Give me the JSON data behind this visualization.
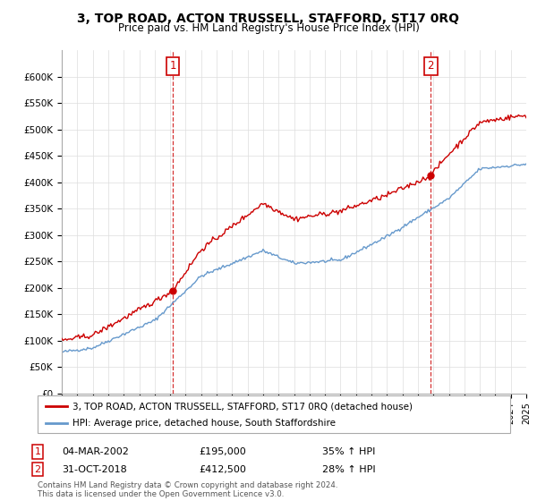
{
  "title": "3, TOP ROAD, ACTON TRUSSELL, STAFFORD, ST17 0RQ",
  "subtitle": "Price paid vs. HM Land Registry's House Price Index (HPI)",
  "ylabel_ticks": [
    "£0",
    "£50K",
    "£100K",
    "£150K",
    "£200K",
    "£250K",
    "£300K",
    "£350K",
    "£400K",
    "£450K",
    "£500K",
    "£550K",
    "£600K"
  ],
  "ytick_values": [
    0,
    50000,
    100000,
    150000,
    200000,
    250000,
    300000,
    350000,
    400000,
    450000,
    500000,
    550000,
    600000
  ],
  "ylim": [
    0,
    650000
  ],
  "x_start_year": 1995,
  "x_end_year": 2025,
  "purchase1_year": 2002.17,
  "purchase1_price": 195000,
  "purchase1_label": "1",
  "purchase2_year": 2018.83,
  "purchase2_price": 412500,
  "purchase2_label": "2",
  "red_color": "#cc0000",
  "blue_color": "#6699cc",
  "vline_color": "#cc0000",
  "box_color": "#cc0000",
  "grid_color": "#dddddd",
  "bg_color": "#ffffff",
  "legend_line1": "3, TOP ROAD, ACTON TRUSSELL, STAFFORD, ST17 0RQ (detached house)",
  "legend_line2": "HPI: Average price, detached house, South Staffordshire",
  "annotation1_date": "04-MAR-2002",
  "annotation1_price": "£195,000",
  "annotation1_hpi": "35% ↑ HPI",
  "annotation2_date": "31-OCT-2018",
  "annotation2_price": "£412,500",
  "annotation2_hpi": "28% ↑ HPI",
  "footer": "Contains HM Land Registry data © Crown copyright and database right 2024.\nThis data is licensed under the Open Government Licence v3.0."
}
